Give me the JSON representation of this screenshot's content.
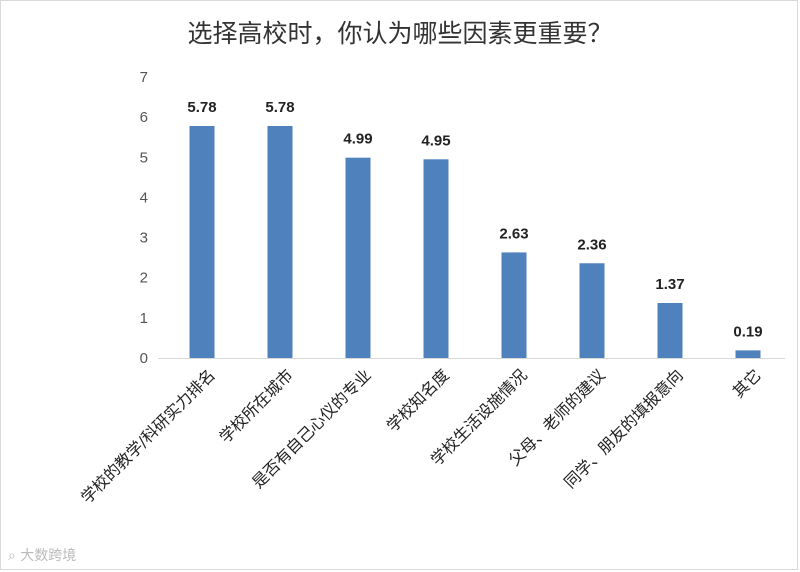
{
  "chart_data": {
    "type": "bar",
    "title": "选择高校时，你认为哪些因素更重要？",
    "categories": [
      "学校的教学/科研实力排名",
      "学校所在城市",
      "是否有自己心仪的专业",
      "学校知名度",
      "学校生活设施情况",
      "父母、老师的建议",
      "同学、朋友的填报意向",
      "其它"
    ],
    "values": [
      5.78,
      5.78,
      4.99,
      4.95,
      2.63,
      2.36,
      1.37,
      0.19
    ],
    "data_labels": [
      "5.78",
      "5.78",
      "4.99",
      "4.95",
      "2.63",
      "2.36",
      "1.37",
      "0.19"
    ],
    "yticks": [
      "0",
      "1",
      "2",
      "3",
      "4",
      "5",
      "6",
      "7"
    ],
    "ylim": [
      0,
      7
    ],
    "bar_color": "#4f81bd",
    "grid": false,
    "legend": "none"
  },
  "watermark": "⌕ 大数跨境"
}
